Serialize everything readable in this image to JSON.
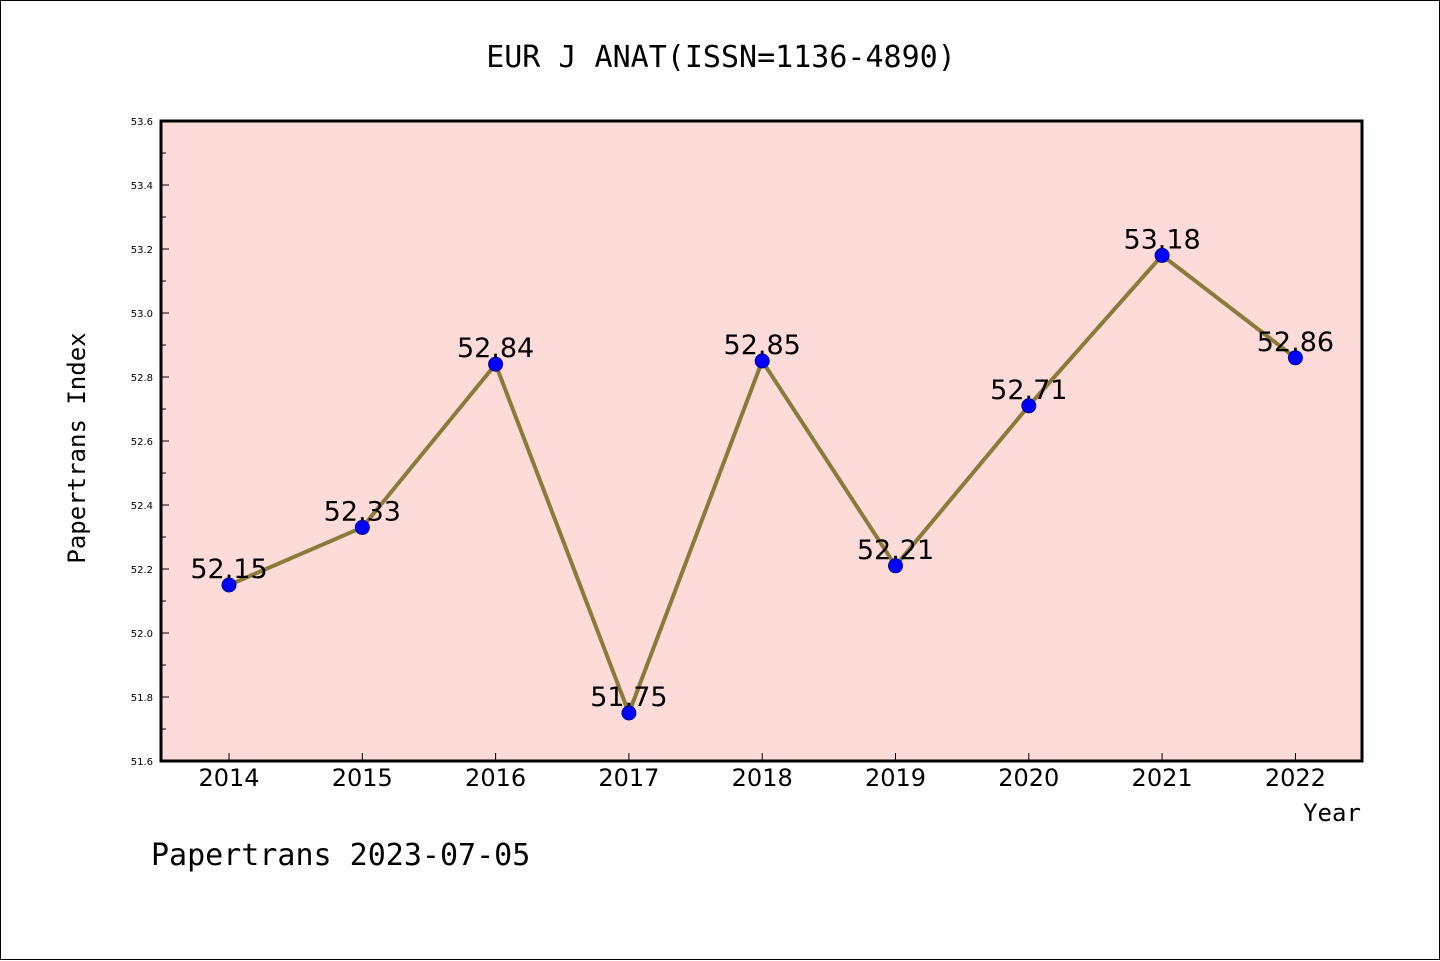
{
  "chart_data": {
    "type": "line",
    "title": "EUR J ANAT(ISSN=1136-4890)",
    "xlabel": "Year",
    "ylabel": "Papertrans Index",
    "categories": [
      "2014",
      "2015",
      "2016",
      "2017",
      "2018",
      "2019",
      "2020",
      "2021",
      "2022"
    ],
    "series": [
      {
        "values": [
          52.15,
          52.33,
          52.84,
          51.75,
          52.85,
          52.21,
          52.71,
          53.18,
          52.86
        ],
        "labels": [
          "52.15",
          "52.33",
          "52.84",
          "51.75",
          "52.85",
          "52.21",
          "52.71",
          "53.18",
          "52.86"
        ]
      }
    ],
    "ylim": [
      51.6,
      53.6
    ],
    "yticks": [
      "51.6",
      "51.8",
      "52.0",
      "52.2",
      "52.4",
      "52.6",
      "52.8",
      "53.0",
      "53.2",
      "53.4",
      "53.6"
    ],
    "grid": false,
    "legend": "none",
    "colors": {
      "plot_background": "#fddbd8",
      "line": "#8b7a3a",
      "marker": "#0000ff"
    }
  },
  "footer": "Papertrans 2023-07-05"
}
